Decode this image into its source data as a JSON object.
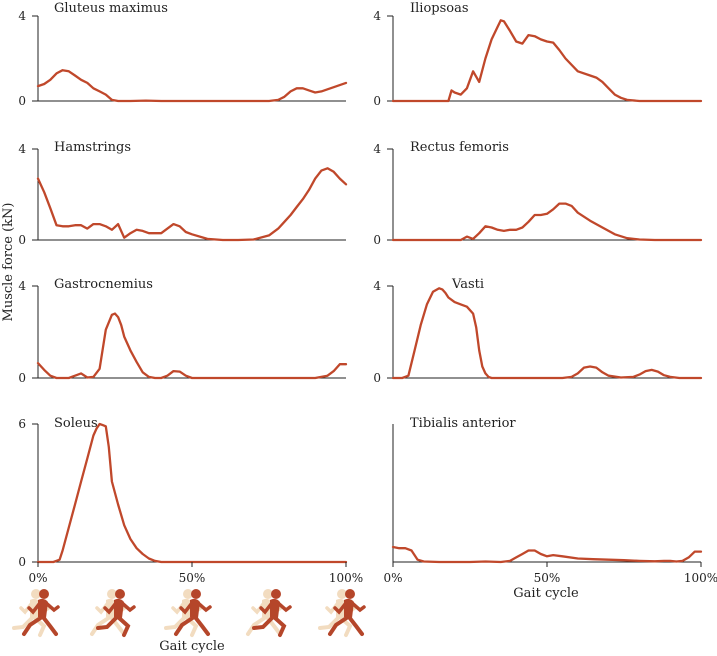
{
  "colors": {
    "curve": "#c0482b",
    "axis": "#222222",
    "runner_main": "#b5462a",
    "runner_ghost": "#f2dcc0"
  },
  "figure": {
    "y_axis_label": "Muscle force (kN)",
    "x_axis_label_right": "Gait cycle",
    "x_axis_label_left": "Gait cycle",
    "runner_icons": [
      "runner-icon",
      "runner-icon",
      "runner-icon",
      "runner-icon",
      "runner-icon"
    ]
  },
  "chart_data": [
    {
      "type": "line",
      "title": "Gluteus maximus",
      "xlim": [
        0,
        100
      ],
      "ylim": [
        0,
        4
      ],
      "yticks": [
        "0",
        "4"
      ],
      "x": [
        0,
        2,
        4,
        6,
        8,
        10,
        12,
        14,
        16,
        18,
        20,
        22,
        24,
        26,
        28,
        30,
        35,
        40,
        50,
        60,
        70,
        75,
        78,
        80,
        82,
        84,
        86,
        88,
        90,
        92,
        94,
        96,
        98,
        100
      ],
      "values": [
        0.7,
        0.8,
        1.0,
        1.3,
        1.45,
        1.4,
        1.2,
        1.0,
        0.85,
        0.6,
        0.45,
        0.3,
        0.05,
        0,
        0,
        0,
        0.02,
        0,
        0,
        0,
        0,
        0,
        0.05,
        0.2,
        0.45,
        0.6,
        0.6,
        0.5,
        0.4,
        0.45,
        0.55,
        0.65,
        0.75,
        0.85
      ]
    },
    {
      "type": "line",
      "title": "Iliopsoas",
      "xlim": [
        0,
        100
      ],
      "ylim": [
        0,
        4
      ],
      "yticks": [
        "0",
        "4"
      ],
      "x": [
        0,
        5,
        10,
        15,
        18,
        19,
        20,
        22,
        24,
        26,
        28,
        30,
        32,
        34,
        35,
        36,
        38,
        40,
        42,
        44,
        46,
        48,
        50,
        52,
        54,
        56,
        60,
        64,
        66,
        68,
        70,
        72,
        74,
        76,
        80,
        90,
        100
      ],
      "values": [
        0,
        0,
        0,
        0,
        0,
        0.5,
        0.4,
        0.3,
        0.6,
        1.4,
        0.9,
        2.0,
        2.9,
        3.5,
        3.8,
        3.75,
        3.3,
        2.8,
        2.7,
        3.1,
        3.05,
        2.9,
        2.8,
        2.75,
        2.4,
        2.0,
        1.4,
        1.2,
        1.1,
        0.9,
        0.6,
        0.3,
        0.15,
        0.05,
        0,
        0,
        0
      ]
    },
    {
      "type": "line",
      "title": "Hamstrings",
      "xlim": [
        0,
        100
      ],
      "ylim": [
        0,
        4
      ],
      "yticks": [
        "0",
        "4"
      ],
      "x": [
        0,
        2,
        4,
        6,
        8,
        10,
        12,
        14,
        16,
        18,
        20,
        22,
        24,
        26,
        28,
        30,
        32,
        34,
        36,
        40,
        42,
        44,
        46,
        48,
        50,
        55,
        60,
        65,
        70,
        75,
        78,
        80,
        82,
        84,
        86,
        88,
        90,
        92,
        94,
        96,
        98,
        100
      ],
      "values": [
        2.7,
        2.1,
        1.4,
        0.65,
        0.6,
        0.6,
        0.65,
        0.65,
        0.5,
        0.7,
        0.7,
        0.6,
        0.45,
        0.7,
        0.1,
        0.3,
        0.45,
        0.4,
        0.3,
        0.3,
        0.5,
        0.7,
        0.6,
        0.35,
        0.25,
        0.05,
        0,
        0,
        0.02,
        0.2,
        0.5,
        0.8,
        1.1,
        1.45,
        1.8,
        2.2,
        2.7,
        3.05,
        3.15,
        3.0,
        2.7,
        2.45
      ]
    },
    {
      "type": "line",
      "title": "Rectus femoris",
      "xlim": [
        0,
        100
      ],
      "ylim": [
        0,
        4
      ],
      "yticks": [
        "0",
        "4"
      ],
      "x": [
        0,
        5,
        10,
        15,
        20,
        22,
        24,
        26,
        28,
        30,
        32,
        34,
        36,
        38,
        40,
        42,
        44,
        46,
        48,
        50,
        52,
        54,
        56,
        58,
        60,
        64,
        68,
        72,
        76,
        80,
        85,
        90,
        100
      ],
      "values": [
        0,
        0,
        0,
        0,
        0,
        0,
        0.15,
        0.05,
        0.3,
        0.6,
        0.55,
        0.45,
        0.4,
        0.45,
        0.45,
        0.55,
        0.8,
        1.1,
        1.1,
        1.15,
        1.35,
        1.6,
        1.6,
        1.5,
        1.2,
        0.85,
        0.55,
        0.25,
        0.08,
        0.02,
        0,
        0,
        0
      ]
    },
    {
      "type": "line",
      "title": "Gastrocnemius",
      "xlim": [
        0,
        100
      ],
      "ylim": [
        0,
        4
      ],
      "yticks": [
        "0",
        "4"
      ],
      "x": [
        0,
        2,
        4,
        6,
        8,
        10,
        12,
        14,
        16,
        18,
        20,
        22,
        24,
        25,
        26,
        27,
        28,
        30,
        32,
        34,
        36,
        38,
        40,
        42,
        44,
        46,
        48,
        50,
        55,
        60,
        70,
        80,
        90,
        94,
        96,
        98,
        100
      ],
      "values": [
        0.65,
        0.35,
        0.1,
        0,
        0,
        0,
        0.1,
        0.2,
        0.02,
        0.05,
        0.4,
        2.1,
        2.75,
        2.8,
        2.65,
        2.3,
        1.8,
        1.2,
        0.7,
        0.25,
        0.05,
        0,
        0,
        0.1,
        0.3,
        0.28,
        0.1,
        0,
        0,
        0,
        0,
        0,
        0,
        0.1,
        0.3,
        0.6,
        0.6
      ]
    },
    {
      "type": "line",
      "title": "Vasti",
      "xlim": [
        0,
        100
      ],
      "ylim": [
        0,
        4
      ],
      "yticks": [
        "0",
        "4"
      ],
      "x": [
        0,
        3,
        5,
        7,
        9,
        11,
        13,
        15,
        16,
        17,
        18,
        20,
        22,
        24,
        26,
        27,
        28,
        29,
        30,
        31,
        32,
        35,
        40,
        45,
        50,
        55,
        58,
        60,
        62,
        64,
        66,
        68,
        70,
        74,
        78,
        80,
        82,
        84,
        86,
        88,
        90,
        93,
        100
      ],
      "values": [
        0,
        0,
        0.1,
        1.2,
        2.3,
        3.2,
        3.75,
        3.9,
        3.85,
        3.7,
        3.5,
        3.3,
        3.2,
        3.1,
        2.8,
        2.2,
        1.2,
        0.5,
        0.2,
        0.05,
        0,
        0,
        0,
        0,
        0,
        0,
        0.05,
        0.2,
        0.45,
        0.5,
        0.45,
        0.25,
        0.1,
        0.02,
        0.05,
        0.15,
        0.3,
        0.35,
        0.28,
        0.12,
        0.05,
        0,
        0
      ]
    },
    {
      "type": "line",
      "title": "Soleus",
      "xlim": [
        0,
        100
      ],
      "ylim": [
        0,
        6
      ],
      "yticks": [
        "0",
        "6"
      ],
      "x": [
        0,
        5,
        7,
        8,
        9,
        10,
        12,
        14,
        16,
        18,
        19,
        20,
        21,
        22,
        23,
        24,
        26,
        28,
        30,
        32,
        34,
        36,
        38,
        40,
        45,
        50,
        60,
        70,
        80,
        90,
        100
      ],
      "values": [
        0,
        0,
        0.1,
        0.5,
        1.0,
        1.5,
        2.5,
        3.5,
        4.5,
        5.5,
        5.8,
        6.0,
        5.95,
        5.9,
        5.0,
        3.5,
        2.5,
        1.6,
        1.0,
        0.6,
        0.35,
        0.15,
        0.05,
        0,
        0,
        0,
        0,
        0,
        0,
        0,
        0
      ]
    },
    {
      "type": "line",
      "title": "Tibialis anterior",
      "xlim": [
        0,
        100
      ],
      "ylim": [
        0,
        6
      ],
      "yticks": [],
      "x": [
        0,
        2,
        4,
        6,
        8,
        10,
        15,
        20,
        25,
        30,
        35,
        38,
        40,
        42,
        44,
        46,
        48,
        50,
        52,
        55,
        60,
        65,
        70,
        75,
        80,
        85,
        88,
        90,
        92,
        94,
        96,
        98,
        100
      ],
      "values": [
        0.65,
        0.6,
        0.6,
        0.5,
        0.1,
        0.02,
        0,
        0,
        0,
        0.02,
        0,
        0.05,
        0.2,
        0.35,
        0.5,
        0.5,
        0.35,
        0.25,
        0.3,
        0.25,
        0.15,
        0.12,
        0.1,
        0.08,
        0.05,
        0.03,
        0.05,
        0.05,
        0.02,
        0.05,
        0.2,
        0.45,
        0.45
      ]
    }
  ],
  "x_ticks": [
    "0%",
    "50%",
    "100%"
  ]
}
